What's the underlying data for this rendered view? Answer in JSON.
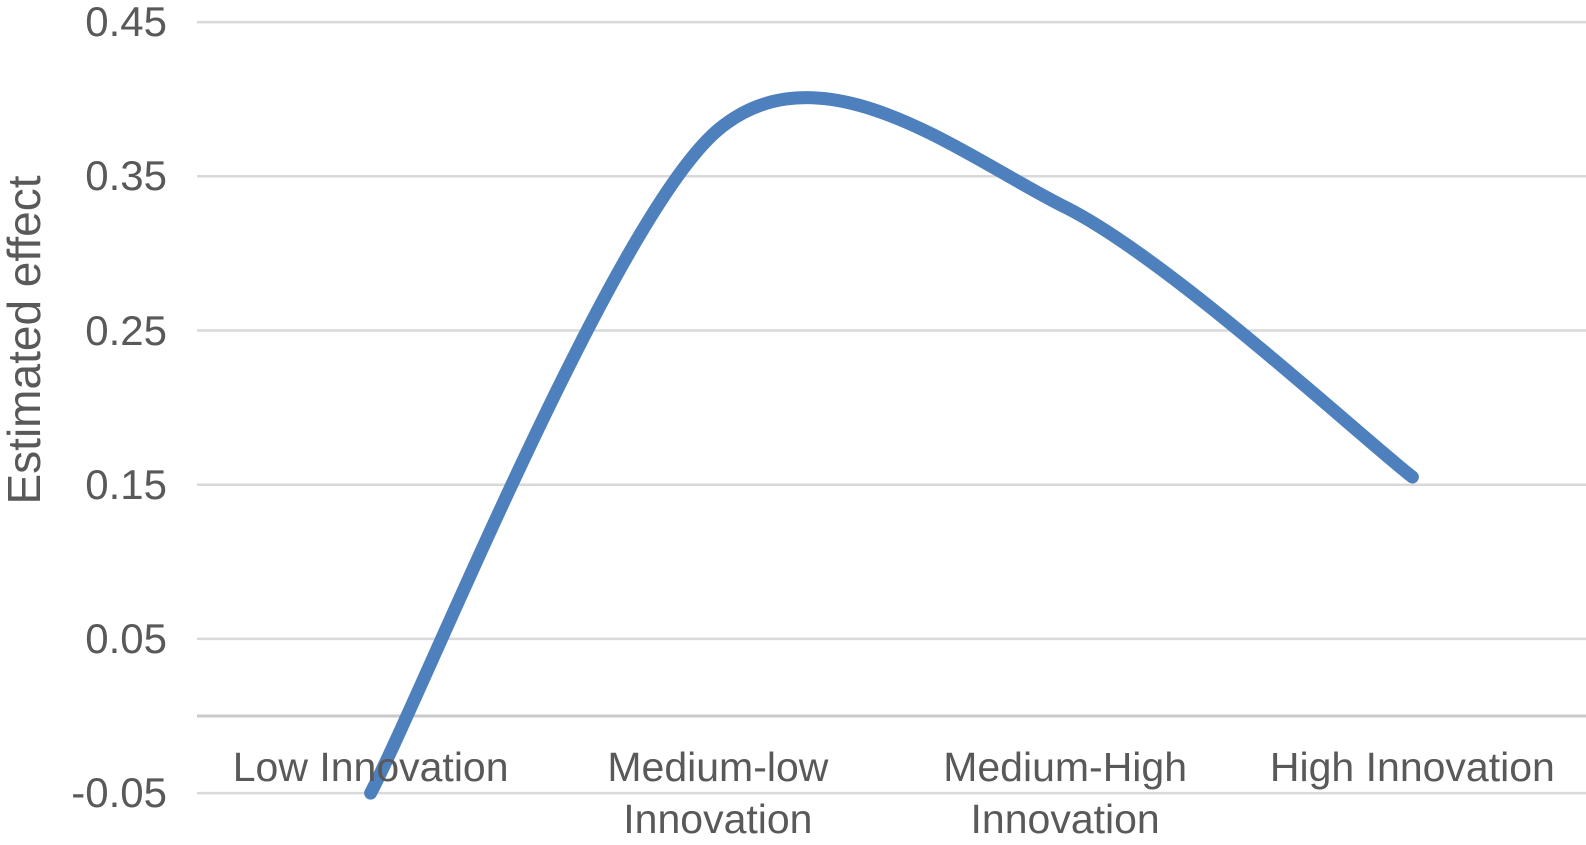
{
  "chart_data": {
    "type": "line",
    "title": "",
    "xlabel": "",
    "ylabel": "Estimated effect",
    "categories": [
      "Low Innovation",
      "Medium-low Innovation",
      "Medium-High Innovation",
      "High Innovation"
    ],
    "series": [
      {
        "name": "Estimated effect",
        "values": [
          -0.05,
          0.38,
          0.33,
          0.155
        ]
      }
    ],
    "smoothed_line": true,
    "visible_peak_of_smoothed_curve": 0.4,
    "ylim": [
      -0.05,
      0.45
    ],
    "y_ticks": [
      0.45,
      0.35,
      0.25,
      0.15,
      0.05,
      -0.05
    ],
    "x_axis_crosses_at": 0,
    "grid": "horizontal major gridlines",
    "legend_position": "none",
    "line_color": "#4E80BD",
    "axis_text_color": "#595959",
    "gridline_color": "#D9D9D9",
    "zero_axis_line_color": "#C9C9C9",
    "background_color": "#FFFFFF"
  }
}
